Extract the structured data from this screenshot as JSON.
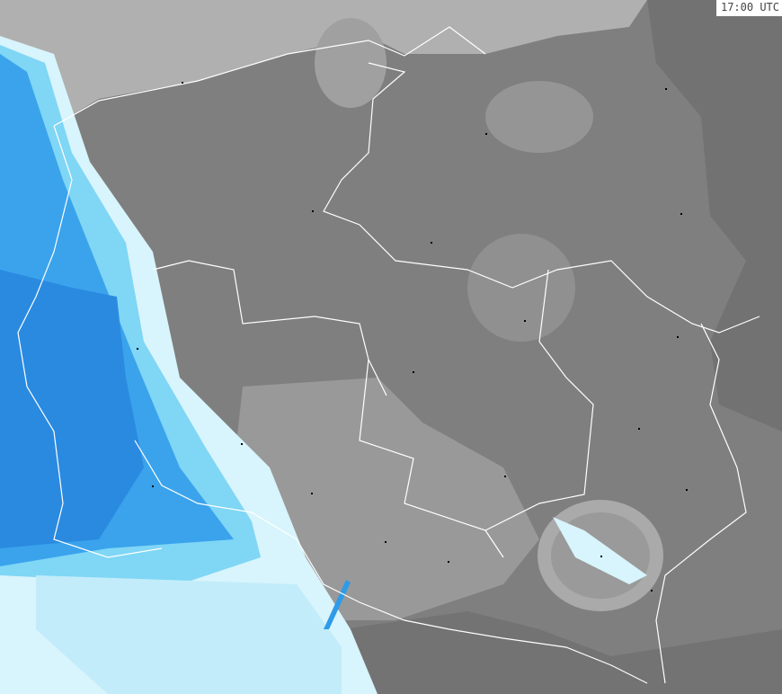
{
  "timestamp": "17:00 UTC",
  "map": {
    "type": "precipitation radar",
    "colors": {
      "background": "#7f7f7f",
      "land_dark": "#6e6e6e",
      "clutter_light": "#a8a8a8",
      "sea": "#b4b4b4",
      "precip_light": "#d8f4fc",
      "precip_medium": "#7fd6f5",
      "precip_strong": "#2f9be8",
      "precip_heavy": "#1e78dc",
      "border": "#ffffff",
      "city": "#000000"
    }
  }
}
